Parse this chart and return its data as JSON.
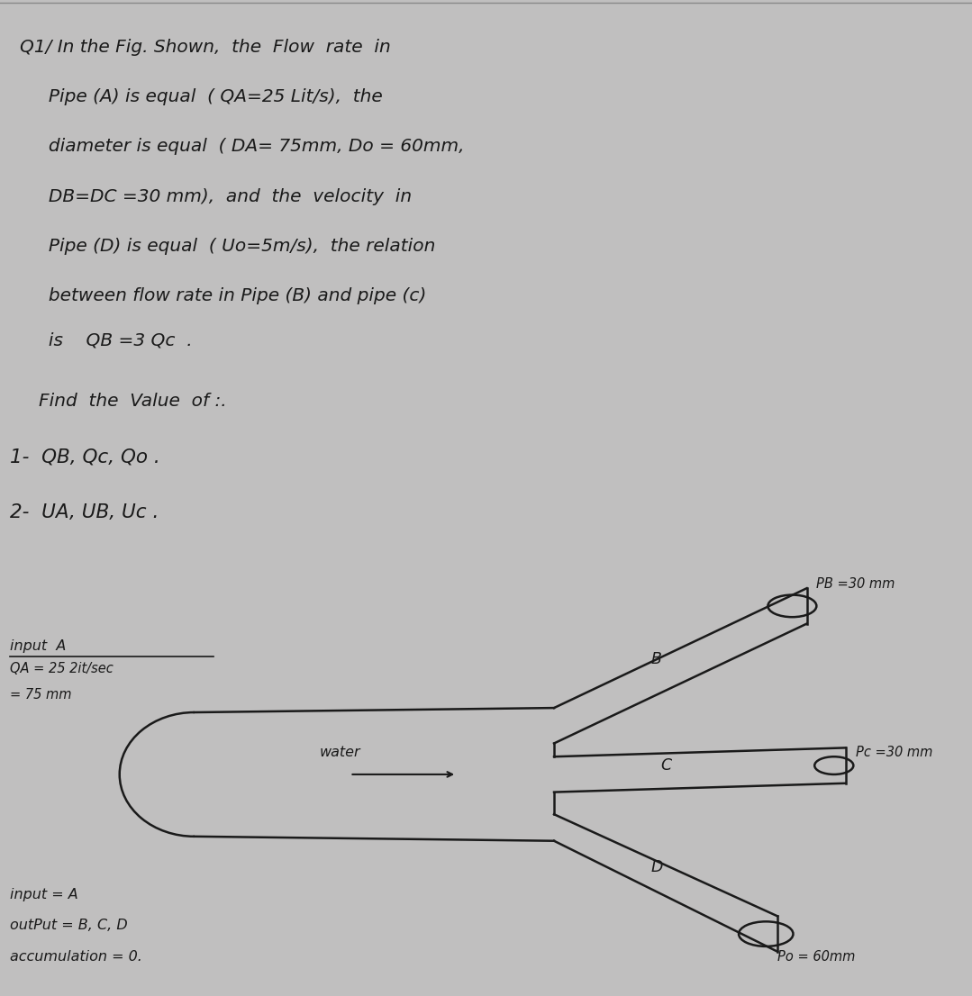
{
  "bg_top": "#e2e2e2",
  "bg_bottom": "#c0bfbf",
  "line_color": "#1a1a1a",
  "text_color": "#1a1a1a",
  "top_text_lines": [
    "Q1/ In the Fig. Shown,  the  Flow  rate  in",
    "     Pipe (A) is equal  ( QA=25 Lit/s),  the",
    "     diameter is equal  ( DA= 75mm, Do = 60mm,",
    "     DB=DC =30 mm),  and  the  velocity  in",
    "     Pipe (D) is equal  ( Uo=5m/s),  the relation",
    "     between flow rate in Pipe (B) and pipe (c)",
    "     is    QB =3 Qc  ."
  ],
  "find_lines": [
    "Find  the  Value  of :.",
    "1-  QB, Qc, Qo .",
    "2-  UA, UB, Uc ."
  ],
  "label_water": "water",
  "label_B": "B",
  "label_C": "C",
  "label_D": "D",
  "label_DB": "PB =30 mm",
  "label_DC": "Pc =30 mm",
  "label_DD": "Po = 60mm",
  "label_input_A": "input  A",
  "label_QA": "QA = 25 2it/sec",
  "label_phiA": "= 75 mm",
  "label_input2": "input = A",
  "label_output": "outPut = B, C, D",
  "label_accum": "accumulation = 0."
}
